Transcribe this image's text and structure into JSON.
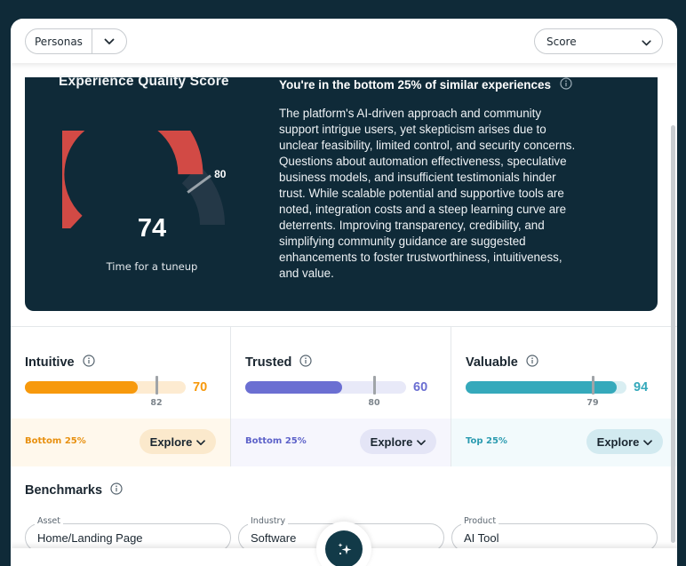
{
  "topbar": {
    "persona_label": "Personas",
    "score_label": "Score"
  },
  "hero": {
    "title": "Experience Quality Score",
    "score": "74",
    "benchmark": "80",
    "gauge_score_value": 74,
    "gauge_benchmark_value": 80,
    "status": "Time for a tuneup",
    "summary_title": "You're in the bottom 25% of similar experiences",
    "summary_lines": [
      "The platform's AI-driven approach and community",
      "support intrigue users, yet skepticism arises due to",
      "unclear feasibility, limited control, and security concerns.",
      "Questions about automation effectiveness, speculative",
      "business models, and insufficient testimonials hinder",
      "trust. While scalable potential and supportive tools are",
      "noted, integration costs and a steep learning curve are",
      "deterrents. Improving transparency, credibility, and",
      "simplifying community guidance are suggested",
      "enhancements to foster trustworthiness, intuitiveness,",
      "and value."
    ],
    "colors": {
      "score_arc": "#d24a45",
      "remaining_arc": "#243847",
      "background": "#0f2a38"
    }
  },
  "metrics": [
    {
      "name": "Intuitive",
      "value": "70",
      "fill_fraction": 0.7,
      "benchmark": "82",
      "benchmark_fraction": 0.82,
      "rank": "Bottom 25%",
      "explore": "Explore",
      "color": "#f7990c",
      "track": "#fdebd1",
      "foot_bg": "#fff8ec",
      "rank_color": "#e8900f",
      "explore_bg": "#fbe9cc"
    },
    {
      "name": "Trusted",
      "value": "60",
      "fill_fraction": 0.6,
      "benchmark": "80",
      "benchmark_fraction": 0.8,
      "rank": "Bottom 25%",
      "explore": "Explore",
      "color": "#6b6fd2",
      "track": "#e8e9f8",
      "foot_bg": "#f6f6fd",
      "rank_color": "#5d62c9",
      "explore_bg": "#e4e5f6"
    },
    {
      "name": "Valuable",
      "value": "94",
      "fill_fraction": 0.94,
      "benchmark": "79",
      "benchmark_fraction": 0.79,
      "rank": "Top 25%",
      "explore": "Explore",
      "color": "#35a9bb",
      "track": "#d9eef2",
      "foot_bg": "#f2fafc",
      "rank_color": "#2b9bb0",
      "explore_bg": "#d2eaf0"
    }
  ],
  "benchmarks": {
    "title": "Benchmarks",
    "fields": [
      {
        "label": "Asset",
        "value": "Home/Landing Page"
      },
      {
        "label": "Industry",
        "value": "Software"
      },
      {
        "label": "Product",
        "value": "AI Tool"
      }
    ]
  },
  "icons": {
    "info": "info-icon",
    "chevron": "chevron-down-icon",
    "assistant": "sparkle-icon"
  }
}
